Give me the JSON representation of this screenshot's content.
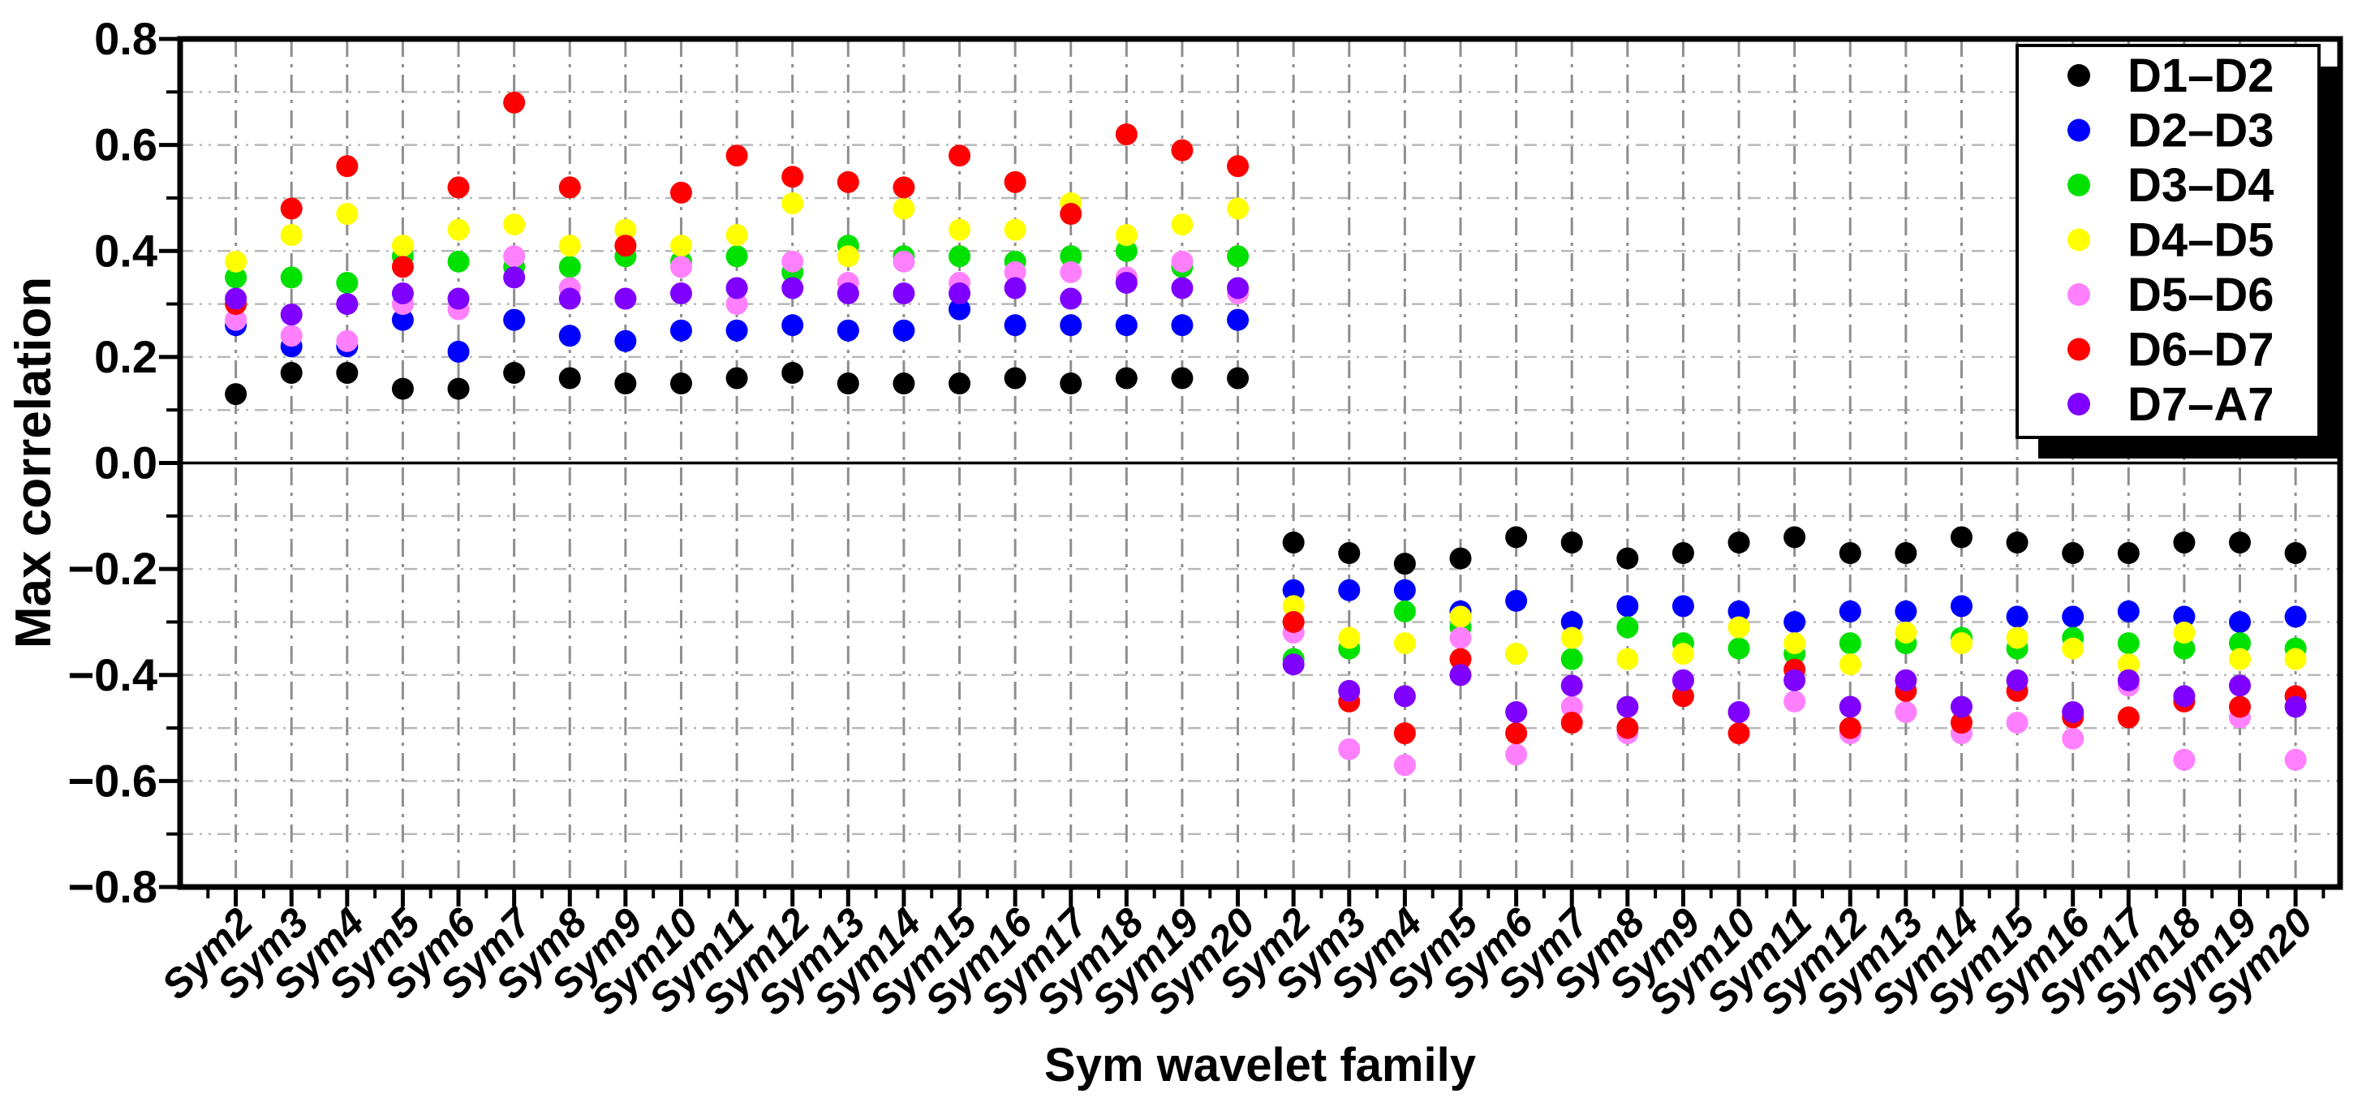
{
  "chart_data": {
    "type": "scatter",
    "title": "",
    "xlabel": "Sym wavelet family",
    "ylabel": "Max correlation",
    "ylim": [
      -0.8,
      0.8
    ],
    "y_major_tick_step": 0.2,
    "y_minor_tick_step": 0.1,
    "y_tick_labels": [
      "0.8",
      "0.6",
      "0.4",
      "0.2",
      "0.0",
      "−0.2",
      "−0.4",
      "−0.6",
      "−0.8"
    ],
    "grid": {
      "vertical": "gray dash-dot line at every category",
      "horizontal": "light dash-dot-dot line every 0.1"
    },
    "legend_position": "top-right",
    "categories": [
      "Sym2",
      "Sym3",
      "Sym4",
      "Sym5",
      "Sym6",
      "Sym7",
      "Sym8",
      "Sym9",
      "Sym10",
      "Sym11",
      "Sym12",
      "Sym13",
      "Sym14",
      "Sym15",
      "Sym16",
      "Sym17",
      "Sym18",
      "Sym19",
      "Sym20",
      "Sym2",
      "Sym3",
      "Sym4",
      "Sym5",
      "Sym6",
      "Sym7",
      "Sym8",
      "Sym9",
      "Sym10",
      "Sym11",
      "Sym12",
      "Sym13",
      "Sym14",
      "Sym15",
      "Sym16",
      "Sym17",
      "Sym18",
      "Sym19",
      "Sym20"
    ],
    "series": [
      {
        "name": "D1–D2",
        "color": "#000000",
        "values": [
          0.13,
          0.17,
          0.17,
          0.14,
          0.14,
          0.17,
          0.16,
          0.15,
          0.15,
          0.16,
          0.17,
          0.15,
          0.15,
          0.15,
          0.16,
          0.15,
          0.16,
          0.16,
          0.16,
          -0.15,
          -0.17,
          -0.19,
          -0.18,
          -0.14,
          -0.15,
          -0.18,
          -0.17,
          -0.15,
          -0.14,
          -0.17,
          -0.17,
          -0.14,
          -0.15,
          -0.17,
          -0.17,
          -0.15,
          -0.15,
          -0.17
        ]
      },
      {
        "name": "D2–D3",
        "color": "#0000ff",
        "values": [
          0.26,
          0.22,
          0.22,
          0.27,
          0.21,
          0.27,
          0.24,
          0.23,
          0.25,
          0.25,
          0.26,
          0.25,
          0.25,
          0.29,
          0.26,
          0.26,
          0.26,
          0.26,
          0.27,
          -0.24,
          -0.24,
          -0.24,
          -0.28,
          -0.26,
          -0.3,
          -0.27,
          -0.27,
          -0.28,
          -0.3,
          -0.28,
          -0.28,
          -0.27,
          -0.29,
          -0.29,
          -0.28,
          -0.29,
          -0.3,
          -0.29
        ]
      },
      {
        "name": "D3–D4",
        "color": "#00e100",
        "values": [
          0.35,
          0.35,
          0.34,
          0.39,
          0.38,
          0.37,
          0.37,
          0.39,
          0.38,
          0.39,
          0.36,
          0.41,
          0.39,
          0.39,
          0.38,
          0.39,
          0.4,
          0.37,
          0.39,
          -0.37,
          -0.35,
          -0.28,
          -0.31,
          -0.36,
          -0.37,
          -0.31,
          -0.34,
          -0.35,
          -0.36,
          -0.34,
          -0.34,
          -0.33,
          -0.35,
          -0.33,
          -0.34,
          -0.35,
          -0.34,
          -0.35
        ]
      },
      {
        "name": "D4–D5",
        "color": "#ffff00",
        "values": [
          0.38,
          0.43,
          0.47,
          0.41,
          0.44,
          0.45,
          0.41,
          0.44,
          0.41,
          0.43,
          0.49,
          0.39,
          0.48,
          0.44,
          0.44,
          0.49,
          0.43,
          0.45,
          0.48,
          -0.27,
          -0.33,
          -0.34,
          -0.29,
          -0.36,
          -0.33,
          -0.37,
          -0.36,
          -0.31,
          -0.34,
          -0.38,
          -0.32,
          -0.34,
          -0.33,
          -0.35,
          -0.38,
          -0.32,
          -0.37,
          -0.37
        ]
      },
      {
        "name": "D5–D6",
        "color": "#ff80ff",
        "values": [
          0.27,
          0.24,
          0.23,
          0.3,
          0.29,
          0.39,
          0.33,
          0.31,
          0.37,
          0.3,
          0.38,
          0.34,
          0.38,
          0.34,
          0.36,
          0.36,
          0.35,
          0.38,
          0.32,
          -0.32,
          -0.54,
          -0.57,
          -0.33,
          -0.55,
          -0.46,
          -0.51,
          -0.41,
          -0.47,
          -0.45,
          -0.51,
          -0.47,
          -0.51,
          -0.49,
          -0.52,
          -0.42,
          -0.56,
          -0.48,
          -0.56
        ]
      },
      {
        "name": "D6–D7",
        "color": "#ff0000",
        "values": [
          0.3,
          0.48,
          0.56,
          0.37,
          0.52,
          0.68,
          0.52,
          0.41,
          0.51,
          0.58,
          0.54,
          0.53,
          0.52,
          0.58,
          0.53,
          0.47,
          0.62,
          0.59,
          0.56,
          -0.3,
          -0.45,
          -0.51,
          -0.37,
          -0.51,
          -0.49,
          -0.5,
          -0.44,
          -0.51,
          -0.39,
          -0.5,
          -0.43,
          -0.49,
          -0.43,
          -0.48,
          -0.48,
          -0.45,
          -0.46,
          -0.44
        ]
      },
      {
        "name": "D7–A7",
        "color": "#7f00ff",
        "values": [
          0.31,
          0.28,
          0.3,
          0.32,
          0.31,
          0.35,
          0.31,
          0.31,
          0.32,
          0.33,
          0.33,
          0.32,
          0.32,
          0.32,
          0.33,
          0.31,
          0.34,
          0.33,
          0.33,
          -0.38,
          -0.43,
          -0.44,
          -0.4,
          -0.47,
          -0.42,
          -0.46,
          -0.41,
          -0.47,
          -0.41,
          -0.46,
          -0.41,
          -0.46,
          -0.41,
          -0.47,
          -0.41,
          -0.44,
          -0.42,
          -0.46
        ]
      }
    ]
  }
}
